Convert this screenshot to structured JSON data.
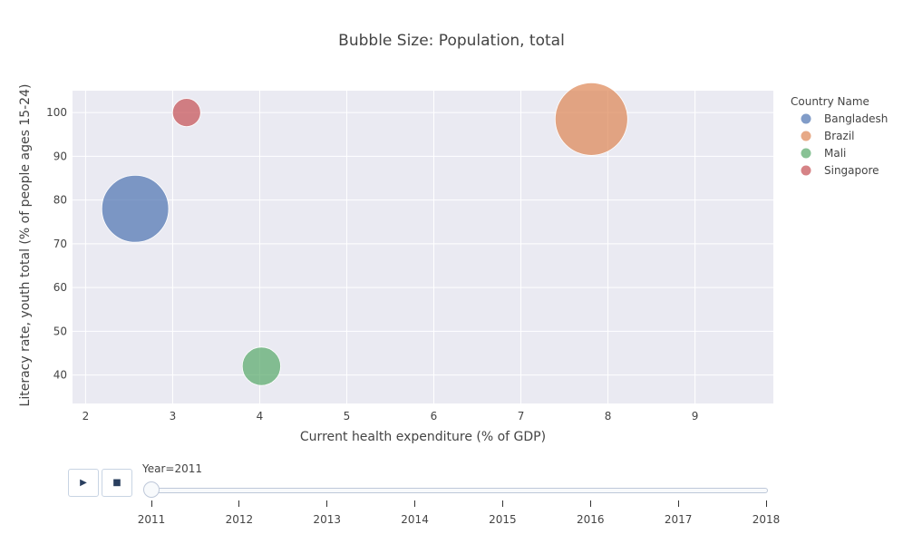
{
  "chart_data": {
    "type": "scatter",
    "title": "Bubble Size: Population, total",
    "xlabel": "Current health expenditure (% of GDP)",
    "ylabel": "Literacy rate, youth total (% of people ages 15-24)",
    "xlim": [
      1.85,
      9.9
    ],
    "ylim": [
      33.5,
      105
    ],
    "xticks": [
      2,
      3,
      4,
      5,
      6,
      7,
      8,
      9
    ],
    "yticks": [
      40,
      50,
      60,
      70,
      80,
      90,
      100
    ],
    "grid": true,
    "legend_title": "Country Name",
    "legend_position": "right",
    "series": [
      {
        "name": "Bangladesh",
        "color": "#4c72b0",
        "x": 2.57,
        "y": 78.0,
        "size_rank": 0.85
      },
      {
        "name": "Brazil",
        "color": "#dd8452",
        "x": 7.81,
        "y": 98.5,
        "size_rank": 1.0
      },
      {
        "name": "Mali",
        "color": "#55a868",
        "x": 4.02,
        "y": 42.0,
        "size_rank": 0.28
      },
      {
        "name": "Singapore",
        "color": "#c44e52",
        "x": 3.16,
        "y": 100.0,
        "size_rank": 0.15
      }
    ]
  },
  "animation": {
    "play_icon": "▶",
    "stop_icon": "■",
    "current_label": "Year=2011",
    "current_value": "2011",
    "steps": [
      "2011",
      "2012",
      "2013",
      "2014",
      "2015",
      "2016",
      "2017",
      "2018"
    ]
  }
}
